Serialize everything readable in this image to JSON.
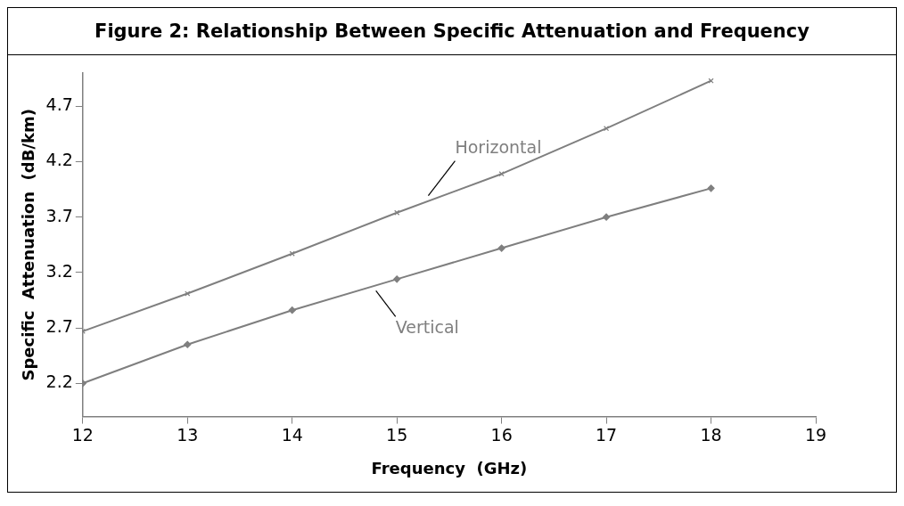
{
  "chart_data": {
    "type": "line",
    "title": "Figure 2: Relationship Between Specific Attenuation and Frequency",
    "xlabel": "Frequency  (GHz)",
    "ylabel": "Specific  Attenuation  (dB/km)",
    "x": [
      12,
      13,
      14,
      15,
      16,
      17,
      18
    ],
    "series": [
      {
        "name": "Horizontal",
        "color": "#7f7f7f",
        "marker": "cross",
        "values": [
          2.67,
          3.01,
          3.37,
          3.74,
          4.09,
          4.5,
          4.93
        ]
      },
      {
        "name": "Vertical",
        "color": "#7f7f7f",
        "marker": "diamond",
        "values": [
          2.2,
          2.55,
          2.86,
          3.14,
          3.42,
          3.7,
          3.96
        ]
      }
    ],
    "xlim": [
      12,
      19
    ],
    "xticks": [
      12,
      13,
      14,
      15,
      16,
      17,
      18,
      19
    ],
    "ylim": [
      1.9,
      5.0
    ],
    "yticks": [
      2.2,
      2.7,
      3.2,
      3.7,
      4.2,
      4.7
    ],
    "grid": false,
    "legend": false
  }
}
